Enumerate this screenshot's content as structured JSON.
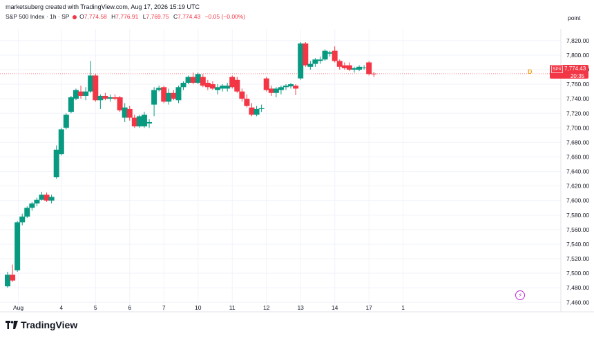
{
  "header": {
    "credit": "marketsuberg created with TradingView.com, Aug 17, 2026 15:19 UTC",
    "symbol_title": "S&P 500 Index · 1h · SP",
    "ohlc": {
      "o_label": "O",
      "o": "7,774.58",
      "h_label": "H",
      "h": "7,776.91",
      "l_label": "L",
      "l": "7,769.75",
      "c_label": "C",
      "c": "7,774.43",
      "change": "−0.05 (−0.00%)"
    },
    "scale_mode": "point"
  },
  "price_tag": {
    "symbol": "SPX",
    "price": "7,774.43",
    "countdown": "20:35"
  },
  "d_marker": "D",
  "event_icon": "lightning-icon",
  "brand": {
    "name": "TradingView",
    "logo": "tradingview-logo-icon"
  },
  "colors": {
    "up": "#089981",
    "down": "#f23645",
    "axis_text": "#131722",
    "grid": "#f0f3fa",
    "dividend": "#f7a21b",
    "event": "#c02bd6"
  },
  "chart_data": {
    "type": "candlestick",
    "y_axis_labels": [
      "7,820.00",
      "7,800.00",
      "7,780.00",
      "7,760.00",
      "7,740.00",
      "7,720.00",
      "7,700.00",
      "7,680.00",
      "7,660.00",
      "7,640.00",
      "7,620.00",
      "7,600.00",
      "7,580.00",
      "7,560.00",
      "7,540.00",
      "7,520.00",
      "7,500.00",
      "7,480.00",
      "7,460.00"
    ],
    "y_ticks": [
      7820,
      7800,
      7780,
      7760,
      7740,
      7720,
      7700,
      7680,
      7660,
      7640,
      7620,
      7600,
      7580,
      7560,
      7540,
      7520,
      7500,
      7480,
      7460
    ],
    "ylim": [
      7447,
      7836
    ],
    "x_axis_labels": [
      {
        "label": "Aug",
        "pos": 2.2
      },
      {
        "label": "4",
        "pos": 11
      },
      {
        "label": "5",
        "pos": 18
      },
      {
        "label": "6",
        "pos": 25
      },
      {
        "label": "7",
        "pos": 32
      },
      {
        "label": "10",
        "pos": 39
      },
      {
        "label": "11",
        "pos": 46
      },
      {
        "label": "12",
        "pos": 53
      },
      {
        "label": "13",
        "pos": 60
      },
      {
        "label": "14",
        "pos": 67
      },
      {
        "label": "17",
        "pos": 74
      },
      {
        "label": "1",
        "pos": 81
      }
    ],
    "last_price": 7774.43,
    "candles": [
      {
        "o": 7482,
        "h": 7502,
        "l": 7480,
        "c": 7498
      },
      {
        "o": 7498,
        "h": 7512,
        "l": 7488,
        "c": 7490
      },
      {
        "o": 7504,
        "h": 7572,
        "l": 7502,
        "c": 7570
      },
      {
        "o": 7570,
        "h": 7582,
        "l": 7566,
        "c": 7578
      },
      {
        "o": 7578,
        "h": 7592,
        "l": 7576,
        "c": 7590
      },
      {
        "o": 7590,
        "h": 7598,
        "l": 7586,
        "c": 7596
      },
      {
        "o": 7596,
        "h": 7604,
        "l": 7592,
        "c": 7601
      },
      {
        "o": 7601,
        "h": 7612,
        "l": 7600,
        "c": 7608
      },
      {
        "o": 7608,
        "h": 7611,
        "l": 7598,
        "c": 7600
      },
      {
        "o": 7600,
        "h": 7608,
        "l": 7596,
        "c": 7605
      },
      {
        "o": 7632,
        "h": 7676,
        "l": 7630,
        "c": 7670
      },
      {
        "o": 7664,
        "h": 7700,
        "l": 7662,
        "c": 7698
      },
      {
        "o": 7700,
        "h": 7720,
        "l": 7698,
        "c": 7718
      },
      {
        "o": 7722,
        "h": 7744,
        "l": 7720,
        "c": 7742
      },
      {
        "o": 7740,
        "h": 7754,
        "l": 7738,
        "c": 7752
      },
      {
        "o": 7750,
        "h": 7758,
        "l": 7740,
        "c": 7744
      },
      {
        "o": 7744,
        "h": 7756,
        "l": 7738,
        "c": 7750
      },
      {
        "o": 7750,
        "h": 7792,
        "l": 7748,
        "c": 7772
      },
      {
        "o": 7772,
        "h": 7774,
        "l": 7736,
        "c": 7738
      },
      {
        "o": 7738,
        "h": 7746,
        "l": 7726,
        "c": 7744
      },
      {
        "o": 7744,
        "h": 7748,
        "l": 7738,
        "c": 7740
      },
      {
        "o": 7740,
        "h": 7746,
        "l": 7736,
        "c": 7742
      },
      {
        "o": 7742,
        "h": 7746,
        "l": 7738,
        "c": 7740
      },
      {
        "o": 7742,
        "h": 7744,
        "l": 7722,
        "c": 7724
      },
      {
        "o": 7714,
        "h": 7734,
        "l": 7708,
        "c": 7728
      },
      {
        "o": 7726,
        "h": 7730,
        "l": 7710,
        "c": 7714
      },
      {
        "o": 7714,
        "h": 7718,
        "l": 7700,
        "c": 7702
      },
      {
        "o": 7702,
        "h": 7718,
        "l": 7700,
        "c": 7716
      },
      {
        "o": 7702,
        "h": 7722,
        "l": 7700,
        "c": 7718
      },
      {
        "o": 7706,
        "h": 7712,
        "l": 7700,
        "c": 7708
      },
      {
        "o": 7732,
        "h": 7756,
        "l": 7716,
        "c": 7752
      },
      {
        "o": 7752,
        "h": 7758,
        "l": 7750,
        "c": 7755
      },
      {
        "o": 7756,
        "h": 7758,
        "l": 7734,
        "c": 7736
      },
      {
        "o": 7736,
        "h": 7754,
        "l": 7732,
        "c": 7748
      },
      {
        "o": 7748,
        "h": 7752,
        "l": 7738,
        "c": 7740
      },
      {
        "o": 7738,
        "h": 7758,
        "l": 7734,
        "c": 7756
      },
      {
        "o": 7756,
        "h": 7764,
        "l": 7752,
        "c": 7762
      },
      {
        "o": 7762,
        "h": 7772,
        "l": 7760,
        "c": 7770
      },
      {
        "o": 7770,
        "h": 7776,
        "l": 7760,
        "c": 7762
      },
      {
        "o": 7762,
        "h": 7776,
        "l": 7760,
        "c": 7774
      },
      {
        "o": 7770,
        "h": 7774,
        "l": 7756,
        "c": 7758
      },
      {
        "o": 7762,
        "h": 7766,
        "l": 7752,
        "c": 7756
      },
      {
        "o": 7760,
        "h": 7764,
        "l": 7752,
        "c": 7754
      },
      {
        "o": 7752,
        "h": 7760,
        "l": 7746,
        "c": 7756
      },
      {
        "o": 7754,
        "h": 7760,
        "l": 7750,
        "c": 7758
      },
      {
        "o": 7754,
        "h": 7762,
        "l": 7750,
        "c": 7758
      },
      {
        "o": 7770,
        "h": 7772,
        "l": 7754,
        "c": 7756
      },
      {
        "o": 7766,
        "h": 7770,
        "l": 7748,
        "c": 7750
      },
      {
        "o": 7750,
        "h": 7754,
        "l": 7736,
        "c": 7740
      },
      {
        "o": 7740,
        "h": 7746,
        "l": 7728,
        "c": 7730
      },
      {
        "o": 7728,
        "h": 7734,
        "l": 7716,
        "c": 7718
      },
      {
        "o": 7718,
        "h": 7730,
        "l": 7716,
        "c": 7726
      },
      {
        "o": 7726,
        "h": 7732,
        "l": 7722,
        "c": 7727
      },
      {
        "o": 7768,
        "h": 7770,
        "l": 7750,
        "c": 7752
      },
      {
        "o": 7754,
        "h": 7758,
        "l": 7744,
        "c": 7748
      },
      {
        "o": 7748,
        "h": 7756,
        "l": 7742,
        "c": 7754
      },
      {
        "o": 7752,
        "h": 7758,
        "l": 7746,
        "c": 7756
      },
      {
        "o": 7756,
        "h": 7760,
        "l": 7752,
        "c": 7758
      },
      {
        "o": 7757,
        "h": 7762,
        "l": 7754,
        "c": 7760
      },
      {
        "o": 7758,
        "h": 7760,
        "l": 7745,
        "c": 7754
      },
      {
        "o": 7768,
        "h": 7818,
        "l": 7766,
        "c": 7816
      },
      {
        "o": 7816,
        "h": 7818,
        "l": 7784,
        "c": 7786
      },
      {
        "o": 7784,
        "h": 7792,
        "l": 7780,
        "c": 7788
      },
      {
        "o": 7788,
        "h": 7796,
        "l": 7784,
        "c": 7794
      },
      {
        "o": 7792,
        "h": 7798,
        "l": 7788,
        "c": 7794
      },
      {
        "o": 7794,
        "h": 7808,
        "l": 7792,
        "c": 7806
      },
      {
        "o": 7802,
        "h": 7806,
        "l": 7798,
        "c": 7804
      },
      {
        "o": 7806,
        "h": 7812,
        "l": 7790,
        "c": 7792
      },
      {
        "o": 7792,
        "h": 7794,
        "l": 7780,
        "c": 7784
      },
      {
        "o": 7786,
        "h": 7790,
        "l": 7780,
        "c": 7782
      },
      {
        "o": 7786,
        "h": 7790,
        "l": 7778,
        "c": 7780
      },
      {
        "o": 7780,
        "h": 7784,
        "l": 7776,
        "c": 7782
      },
      {
        "o": 7780,
        "h": 7786,
        "l": 7778,
        "c": 7784
      },
      {
        "o": 7782,
        "h": 7786,
        "l": 7780,
        "c": 7783
      },
      {
        "o": 7790,
        "h": 7792,
        "l": 7772,
        "c": 7774
      },
      {
        "o": 7774.58,
        "h": 7776.91,
        "l": 7769.75,
        "c": 7774.43
      }
    ]
  }
}
